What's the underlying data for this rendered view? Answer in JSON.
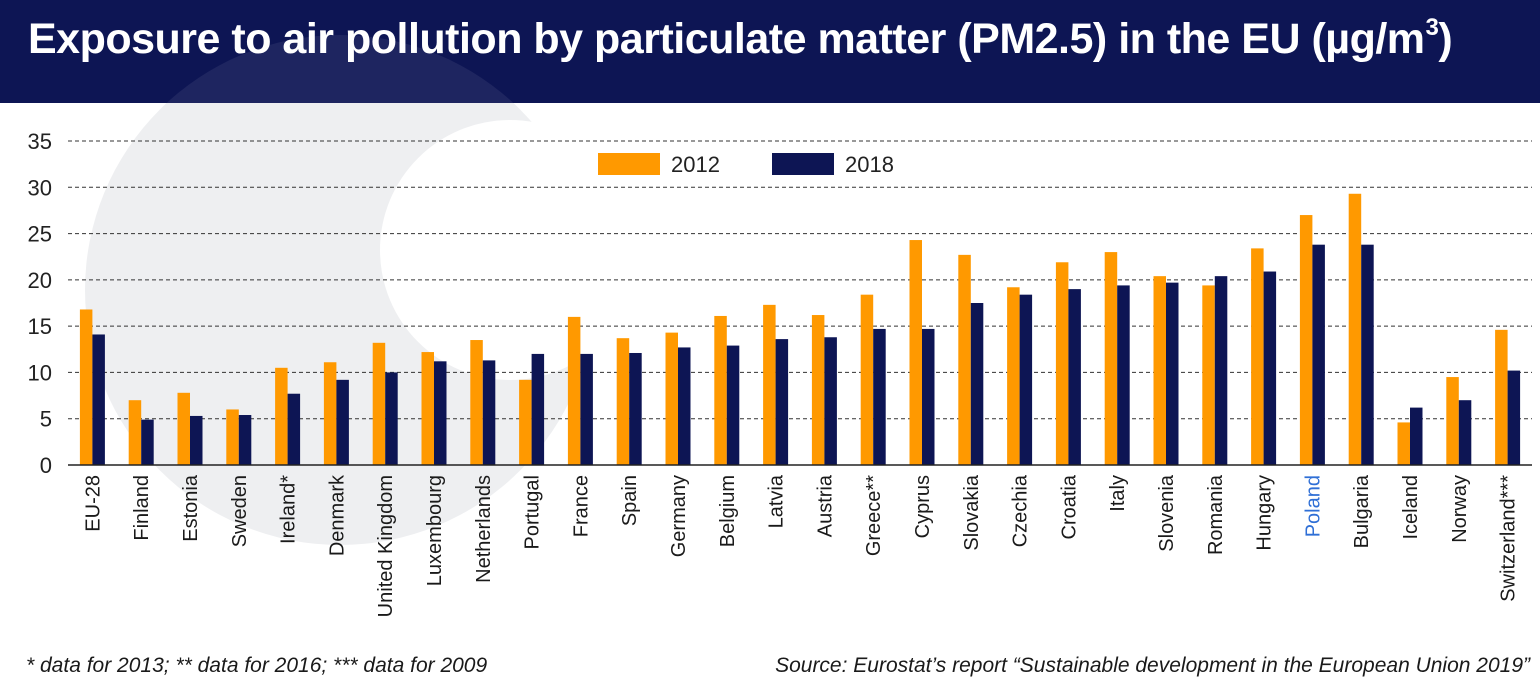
{
  "header": {
    "title": "Exposure to air pollution by particulate matter (PM2.5) in the EU (µg/m",
    "title_superscript": "3",
    "title_close": ")"
  },
  "footer": {
    "note": "* data for 2013; ** data for 2016; *** data for 2009",
    "source": "Source: Eurostat’s report “Sustainable development in the European Union 2019”"
  },
  "colors": {
    "header_bg": "#0d1554",
    "series_2012": "#ff9900",
    "series_2018": "#0d1554",
    "highlight_label": "#2f6fd6"
  },
  "chart_data": {
    "type": "bar",
    "title": "Exposure to air pollution by particulate matter (PM2.5) in the EU (µg/m3)",
    "xlabel": "",
    "ylabel": "",
    "ylim": [
      0,
      35
    ],
    "yticks": [
      "0",
      "5",
      "10",
      "15",
      "20",
      "25",
      "30",
      "35"
    ],
    "grid": true,
    "legend_position": "top-center",
    "highlight_category": "Poland",
    "categories": [
      "EU-28",
      "Finland",
      "Estonia",
      "Sweden",
      "Ireland*",
      "Denmark",
      "United Kingdom",
      "Luxembourg",
      "Netherlands",
      "Portugal",
      "France",
      "Spain",
      "Germany",
      "Belgium",
      "Latvia",
      "Austria",
      "Greece**",
      "Cyprus",
      "Slovakia",
      "Czechia",
      "Croatia",
      "Italy",
      "Slovenia",
      "Romania",
      "Hungary",
      "Poland",
      "Bulgaria",
      "Iceland",
      "Norway",
      "Switzerland***"
    ],
    "series": [
      {
        "name": "2012",
        "color": "#ff9900",
        "values": [
          16.8,
          7.0,
          7.8,
          6.0,
          10.5,
          11.1,
          13.2,
          12.2,
          13.5,
          9.2,
          16.0,
          13.7,
          14.3,
          16.1,
          17.3,
          16.2,
          18.4,
          24.3,
          22.7,
          19.2,
          21.9,
          23.0,
          20.4,
          19.4,
          23.4,
          27.0,
          29.3,
          4.6,
          9.5,
          14.6
        ]
      },
      {
        "name": "2018",
        "color": "#0d1554",
        "values": [
          14.1,
          4.9,
          5.3,
          5.4,
          7.7,
          9.2,
          10.0,
          11.2,
          11.3,
          12.0,
          12.0,
          12.1,
          12.7,
          12.9,
          13.6,
          13.8,
          14.7,
          14.7,
          17.5,
          18.4,
          19.0,
          19.4,
          19.7,
          20.4,
          20.9,
          23.8,
          23.8,
          6.2,
          7.0,
          10.2
        ]
      }
    ]
  }
}
